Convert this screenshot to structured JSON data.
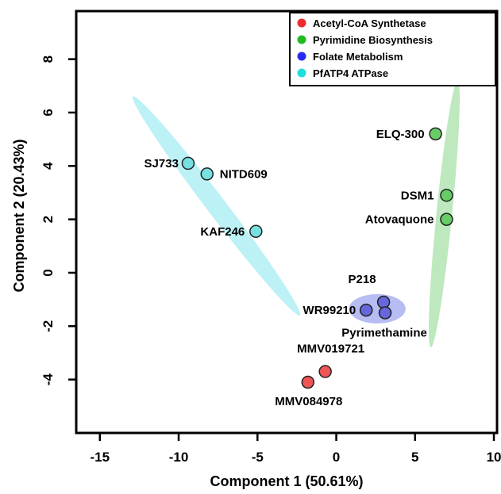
{
  "chart_data": {
    "type": "scatter",
    "xlabel": "Component 1 (50.61%)",
    "ylabel": "Component 2 (20.43%)",
    "xlim": [
      -16.5,
      10.2
    ],
    "ylim": [
      -6.0,
      9.8
    ],
    "xticks": [
      -15,
      -10,
      -5,
      0,
      5,
      10
    ],
    "yticks": [
      -4,
      -2,
      0,
      2,
      4,
      6,
      8
    ],
    "grid": false,
    "legend_position": "top-right",
    "legend": [
      {
        "label": "Acetyl-CoA Synthetase",
        "color": "#ee2a2a"
      },
      {
        "label": "Pyrimidine Biosynthesis",
        "color": "#22bb22"
      },
      {
        "label": "Folate Metabolism",
        "color": "#2a2aee"
      },
      {
        "label": "PfATP4 ATPase",
        "color": "#22dddd"
      }
    ],
    "groups": [
      {
        "legend_index": 0,
        "fill": "#ee5555",
        "points": [
          {
            "name": "MMV019721",
            "x": -0.7,
            "y": -3.7
          },
          {
            "name": "MMV084978",
            "x": -1.8,
            "y": -4.1
          }
        ]
      },
      {
        "legend_index": 1,
        "fill": "#66cc66",
        "points": [
          {
            "name": "ELQ-300",
            "x": 6.3,
            "y": 5.2
          },
          {
            "name": "DSM1",
            "x": 7.0,
            "y": 2.9
          },
          {
            "name": "Atovaquone",
            "x": 7.0,
            "y": 2.0
          }
        ]
      },
      {
        "legend_index": 2,
        "fill": "#6666dd",
        "points": [
          {
            "name": "P218",
            "x": 3.0,
            "y": -1.1
          },
          {
            "name": "WR99210",
            "x": 1.9,
            "y": -1.4
          },
          {
            "name": "Pyrimethamine",
            "x": 3.1,
            "y": -1.5
          }
        ]
      },
      {
        "legend_index": 3,
        "fill": "#77e0e0",
        "points": [
          {
            "name": "SJ733",
            "x": -9.4,
            "y": 4.1
          },
          {
            "name": "NITD609",
            "x": -8.2,
            "y": 3.7
          },
          {
            "name": "KAF246",
            "x": -5.1,
            "y": 1.55
          }
        ]
      }
    ],
    "ellipse_colors": {
      "pyrimidine": "#a8e0a8",
      "folate": "#aab0f0",
      "pfatp4": "#a6ecf2"
    }
  }
}
